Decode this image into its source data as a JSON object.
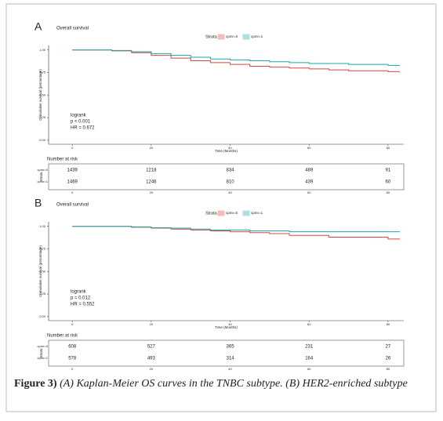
{
  "caption": {
    "label": "Figure 3)",
    "text": "(A) Kaplan-Meier OS curves in the TNBC subtype. (B) HER2-enriched subtype"
  },
  "chart_data": [
    {
      "type": "line",
      "panel": "A",
      "title": "Overall survival",
      "legend_title": "Strata",
      "x_label": "Time (Months)",
      "y_label": "Cumulative survival (percentage)",
      "x": [
        0,
        5,
        10,
        15,
        20,
        25,
        30,
        35,
        40,
        45,
        50,
        55,
        60,
        65,
        70,
        75,
        80,
        83
      ],
      "series": [
        {
          "name": "cpmr=0",
          "color": "#e0453a",
          "values": [
            1,
            1,
            0.99,
            0.97,
            0.94,
            0.91,
            0.88,
            0.86,
            0.84,
            0.82,
            0.81,
            0.8,
            0.79,
            0.78,
            0.77,
            0.77,
            0.76,
            0.76
          ]
        },
        {
          "name": "cpmr=1",
          "color": "#17a8a8",
          "values": [
            1,
            1,
            0.995,
            0.98,
            0.96,
            0.94,
            0.92,
            0.9,
            0.89,
            0.88,
            0.87,
            0.86,
            0.85,
            0.85,
            0.84,
            0.84,
            0.83,
            0.83
          ]
        }
      ],
      "xlim": [
        -6,
        84
      ],
      "xticks": [
        0,
        20,
        40,
        60,
        80
      ],
      "ylim": [
        -0.045,
        1.05
      ],
      "yticks": [
        {
          "value": 0,
          "label": "0.00"
        },
        {
          "value": 0.25,
          "label": "0.25"
        },
        {
          "value": 0.5,
          "label": "0.50"
        },
        {
          "value": 0.75,
          "label": "0.75"
        },
        {
          "value": 1,
          "label": "1.00"
        }
      ],
      "annotation": [
        "logrank",
        "p < 0.001",
        "HR = 0.672"
      ],
      "risk_table": {
        "title": "Number at risk",
        "strata_label": "Strata",
        "rows": [
          {
            "name": "cpmr=0",
            "values": [
              1439,
              1218,
              834,
              489,
              91
            ]
          },
          {
            "name": "cpmr=1",
            "values": [
              1469,
              1246,
              810,
              439,
              60
            ]
          }
        ]
      }
    },
    {
      "type": "line",
      "panel": "B",
      "title": "Overall survival",
      "legend_title": "Strata",
      "x_label": "Time (Months)",
      "y_label": "Cumulative survival (percentage)",
      "x": [
        0,
        5,
        10,
        15,
        20,
        25,
        30,
        35,
        40,
        45,
        50,
        55,
        60,
        65,
        70,
        75,
        80,
        83
      ],
      "series": [
        {
          "name": "cpmr=0",
          "color": "#e0453a",
          "values": [
            1,
            1,
            1,
            0.99,
            0.98,
            0.97,
            0.96,
            0.95,
            0.94,
            0.93,
            0.92,
            0.9,
            0.9,
            0.88,
            0.88,
            0.88,
            0.86,
            0.86
          ]
        },
        {
          "name": "cpmr=1",
          "color": "#17a8a8",
          "values": [
            1,
            1,
            1,
            0.995,
            0.985,
            0.98,
            0.97,
            0.96,
            0.96,
            0.95,
            0.95,
            0.94,
            0.94,
            0.94,
            0.94,
            0.94,
            0.94,
            0.94
          ]
        }
      ],
      "xlim": [
        -6,
        84
      ],
      "xticks": [
        0,
        20,
        40,
        60,
        80
      ],
      "ylim": [
        -0.045,
        1.05
      ],
      "yticks": [
        {
          "value": 0,
          "label": "0.00"
        },
        {
          "value": 0.25,
          "label": "0.25"
        },
        {
          "value": 0.5,
          "label": "0.50"
        },
        {
          "value": 0.75,
          "label": "0.75"
        },
        {
          "value": 1,
          "label": "1.00"
        }
      ],
      "annotation": [
        "logrank",
        "p = 0.012",
        "HR = 0.552"
      ],
      "risk_table": {
        "title": "Number at risk",
        "strata_label": "Strata",
        "rows": [
          {
            "name": "cpmr=0",
            "values": [
              608,
              527,
              365,
              231,
              27
            ]
          },
          {
            "name": "cpmr=1",
            "values": [
              578,
              493,
              314,
              164,
              26
            ]
          }
        ]
      }
    }
  ]
}
